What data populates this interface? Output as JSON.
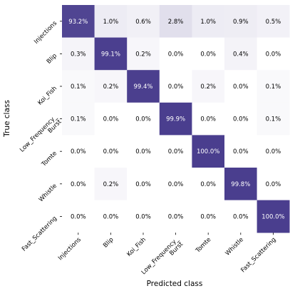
{
  "chart_data": {
    "type": "heatmap",
    "title": "",
    "xlabel": "Predicted class",
    "ylabel": "True class",
    "x_categories": [
      [
        "Injections"
      ],
      [
        "Blip"
      ],
      [
        "Koi_Fish"
      ],
      [
        "Low_Frequency_",
        "Burst"
      ],
      [
        "Tomte"
      ],
      [
        "Whistle"
      ],
      [
        "Fast_Scattering"
      ]
    ],
    "y_categories": [
      [
        "Injections"
      ],
      [
        "Blip"
      ],
      [
        "Koi_Fish"
      ],
      [
        "Low_Frequency_",
        "Burst"
      ],
      [
        "Tomte"
      ],
      [
        "Whistle"
      ],
      [
        "Fast_Scattering"
      ]
    ],
    "values": [
      [
        93.2,
        1.0,
        0.6,
        2.8,
        1.0,
        0.9,
        0.5
      ],
      [
        0.3,
        99.1,
        0.2,
        0.0,
        0.0,
        0.4,
        0.0
      ],
      [
        0.1,
        0.2,
        99.4,
        0.0,
        0.2,
        0.0,
        0.1
      ],
      [
        0.1,
        0.0,
        0.0,
        99.9,
        0.0,
        0.0,
        0.1
      ],
      [
        0.0,
        0.0,
        0.0,
        0.0,
        100.0,
        0.0,
        0.0
      ],
      [
        0.0,
        0.2,
        0.0,
        0.0,
        0.0,
        99.8,
        0.0
      ],
      [
        0.0,
        0.0,
        0.0,
        0.0,
        0.0,
        0.0,
        100.0
      ]
    ],
    "labels": [
      [
        "93.2%",
        "1.0%",
        "0.6%",
        "2.8%",
        "1.0%",
        "0.9%",
        "0.5%"
      ],
      [
        "0.3%",
        "99.1%",
        "0.2%",
        "0.0%",
        "0.0%",
        "0.4%",
        "0.0%"
      ],
      [
        "0.1%",
        "0.2%",
        "99.4%",
        "0.0%",
        "0.2%",
        "0.0%",
        "0.1%"
      ],
      [
        "0.1%",
        "0.0%",
        "0.0%",
        "99.9%",
        "0.0%",
        "0.0%",
        "0.1%"
      ],
      [
        "0.0%",
        "0.0%",
        "0.0%",
        "0.0%",
        "100.0%",
        "0.0%",
        "0.0%"
      ],
      [
        "0.0%",
        "0.2%",
        "0.0%",
        "0.0%",
        "0.0%",
        "99.8%",
        "0.0%"
      ],
      [
        "0.0%",
        "0.0%",
        "0.0%",
        "0.0%",
        "0.0%",
        "0.0%",
        "100.0%"
      ]
    ],
    "vmin": 0,
    "vmax": 100,
    "colormap": {
      "low": "#ffffff",
      "high": "#4a3e8e"
    },
    "grid": false,
    "legend": "none"
  }
}
